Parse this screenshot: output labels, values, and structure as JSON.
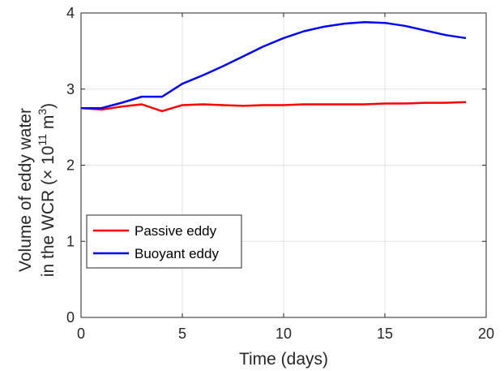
{
  "chart_data": {
    "type": "line",
    "xlabel": "Time (days)",
    "ylabel": {
      "line1": "Volume of eddy water",
      "line2_prefix": "in the WCR (",
      "line2_times": "×",
      "line2_base": " 10",
      "line2_exp": "11",
      "line2_unit": " m",
      "line2_unit_exp": "3",
      "line2_suffix": ")"
    },
    "xlim": [
      0,
      20
    ],
    "ylim": [
      0,
      4
    ],
    "xticks": [
      0,
      5,
      10,
      15,
      20
    ],
    "yticks": [
      0,
      1,
      2,
      3,
      4
    ],
    "grid": true,
    "legend_position": "lower-left",
    "x": [
      0,
      1,
      2,
      3,
      4,
      5,
      6,
      7,
      8,
      9,
      10,
      11,
      12,
      13,
      14,
      15,
      16,
      17,
      18,
      19
    ],
    "series": [
      {
        "name": "Passive eddy",
        "color": "#ff0000",
        "values": [
          2.75,
          2.73,
          2.77,
          2.8,
          2.71,
          2.79,
          2.8,
          2.79,
          2.78,
          2.79,
          2.79,
          2.8,
          2.8,
          2.8,
          2.8,
          2.81,
          2.81,
          2.82,
          2.82,
          2.83
        ]
      },
      {
        "name": "Buoyant eddy",
        "color": "#0000ff",
        "values": [
          2.75,
          2.75,
          2.82,
          2.9,
          2.9,
          3.07,
          3.18,
          3.3,
          3.43,
          3.56,
          3.67,
          3.76,
          3.82,
          3.86,
          3.88,
          3.87,
          3.83,
          3.77,
          3.71,
          3.67
        ]
      }
    ]
  }
}
